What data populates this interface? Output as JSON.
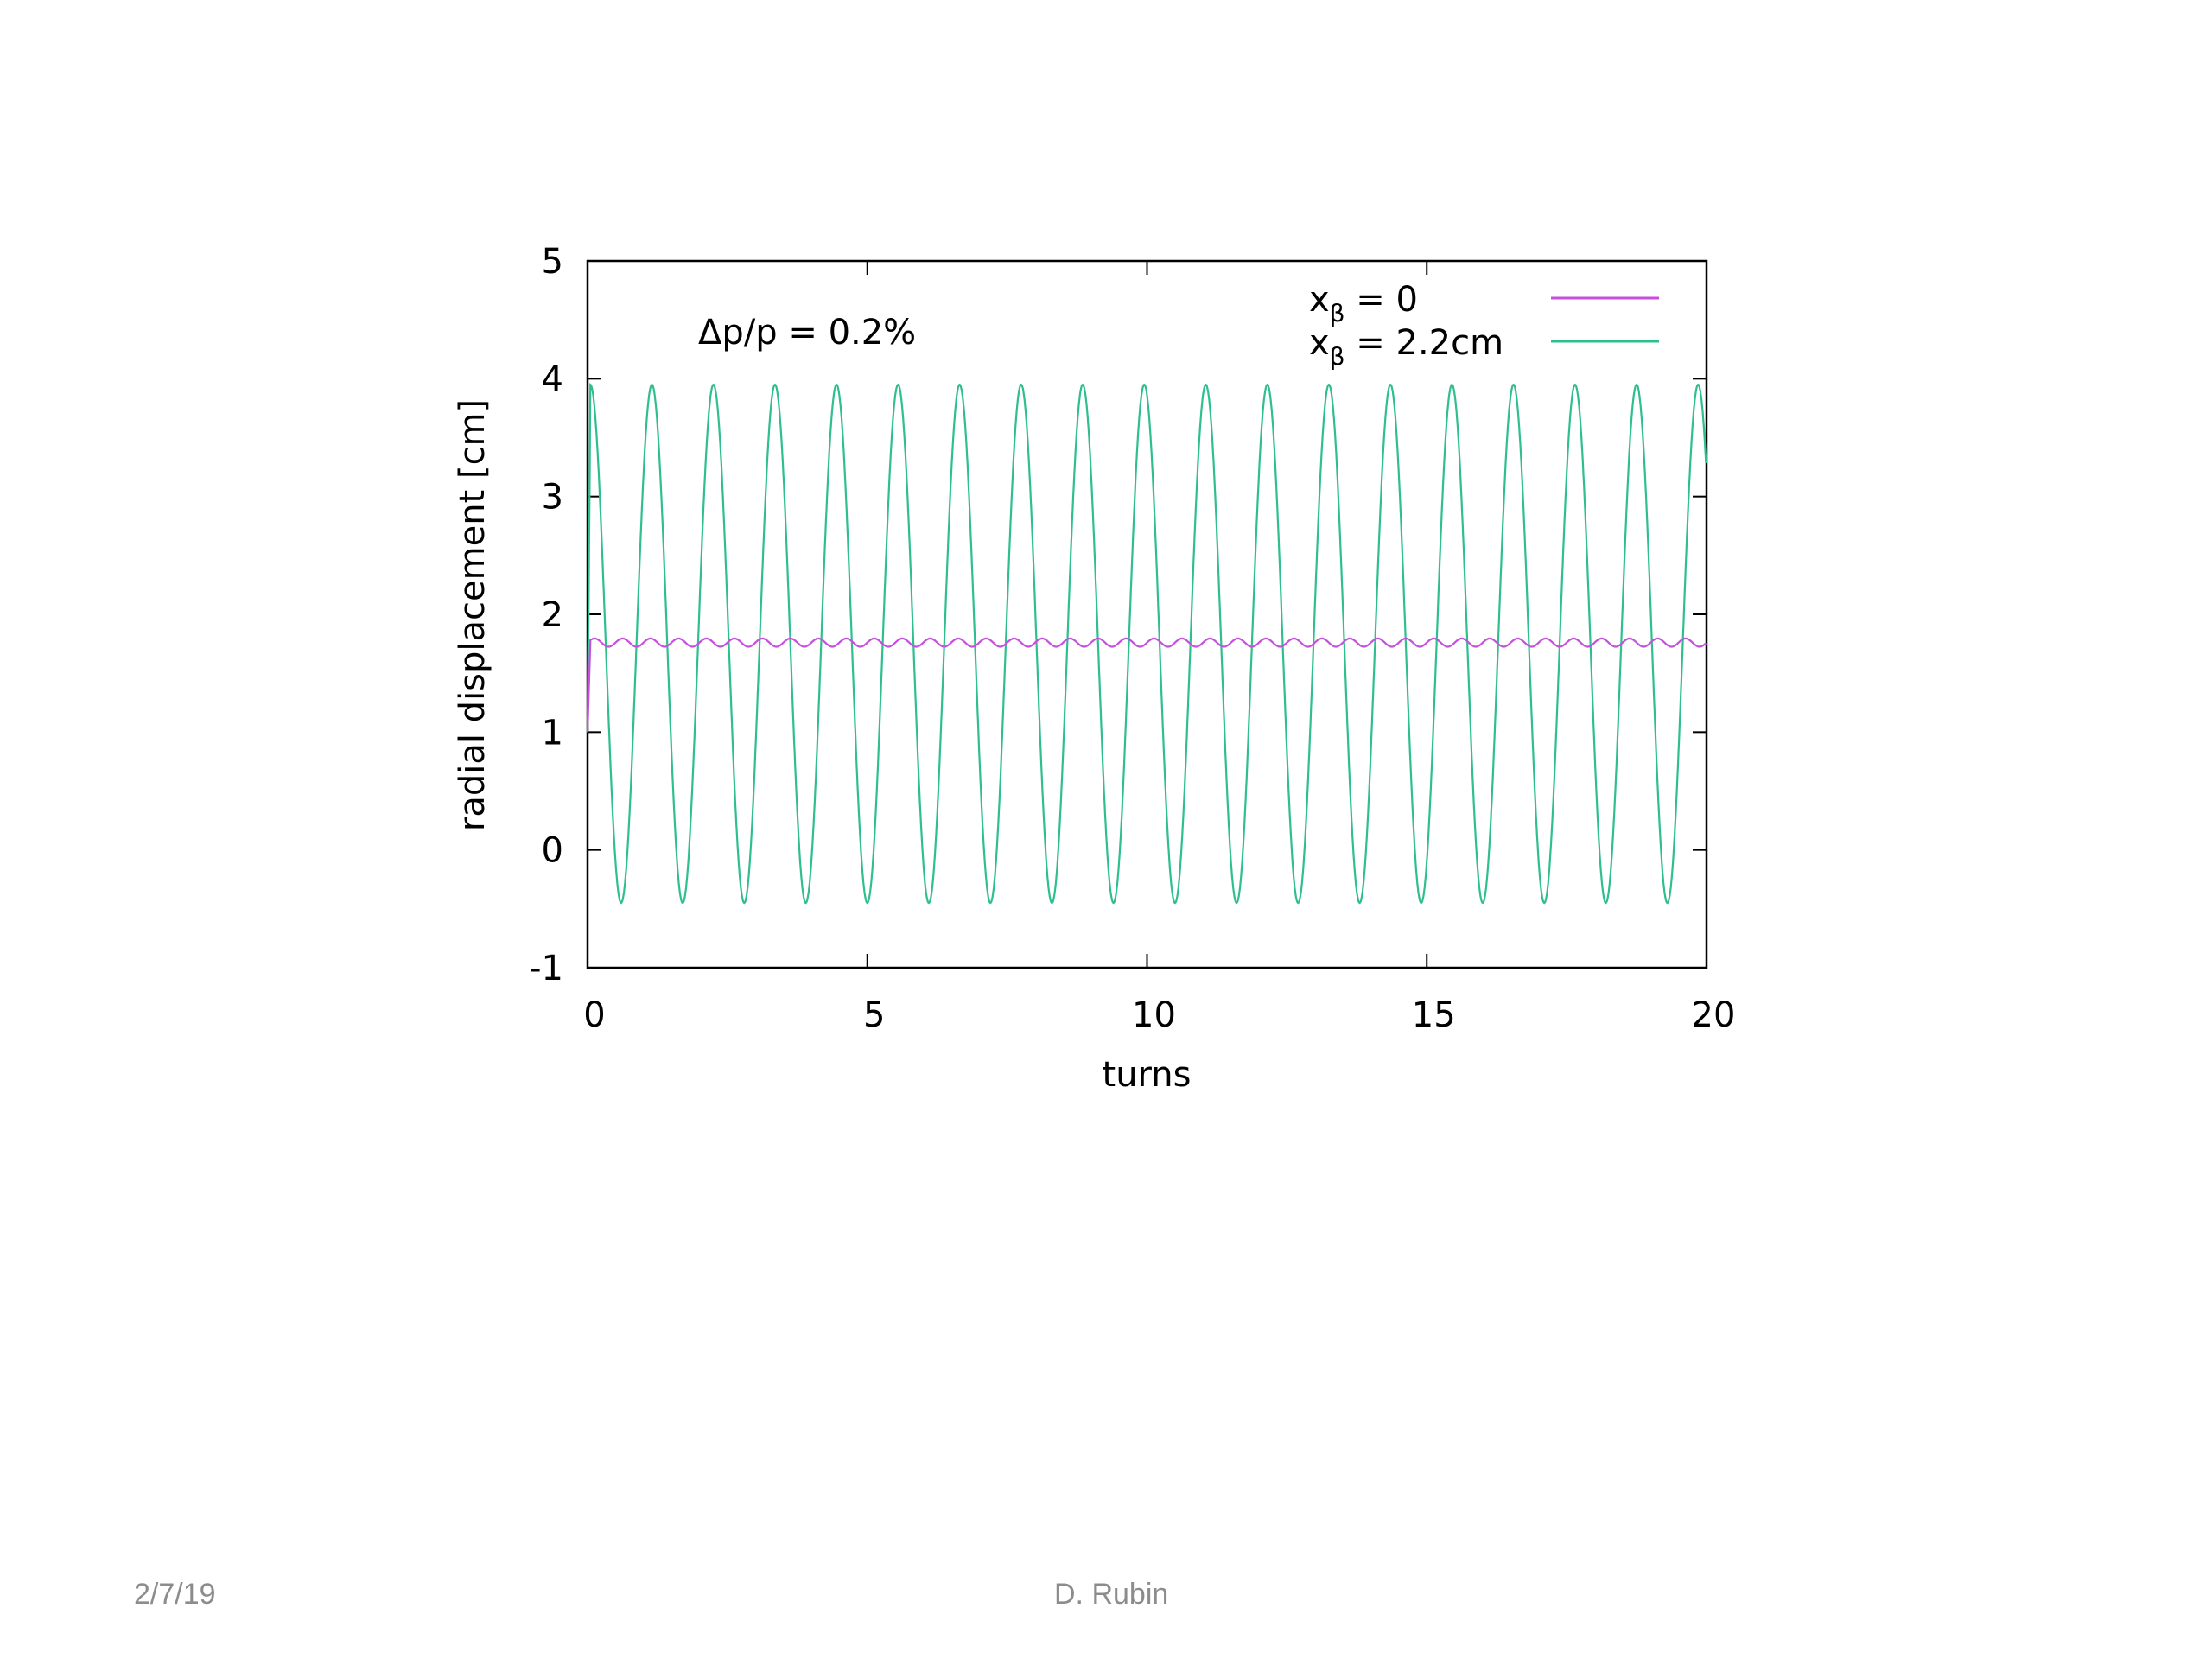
{
  "chart_data": {
    "type": "line",
    "xlabel": "turns",
    "ylabel": "radial displacement [cm]",
    "xlim": [
      0,
      20
    ],
    "ylim": [
      -1,
      5
    ],
    "xticks": [
      0,
      5,
      10,
      15,
      20
    ],
    "yticks": [
      -1,
      0,
      1,
      2,
      3,
      4,
      5
    ],
    "grid": false,
    "legend_position": "top-right",
    "annotation": "Δp/p = 0.2%",
    "series": [
      {
        "name_base": "x",
        "name_sub": "β",
        "name_rest": " = 0",
        "color": "#c74fe0",
        "start_value": 1.0,
        "mean": 1.76,
        "amplitude": 0.035,
        "ripple_period_turns": 0.5
      },
      {
        "name_base": "x",
        "name_sub": "β",
        "name_rest": " = 2.2cm",
        "color": "#2fbf8f",
        "start_value": 1.0,
        "first_peak": [
          0.05,
          3.8
        ],
        "oscillation_period_turns": 1.1,
        "max": 3.95,
        "min": -0.45
      }
    ]
  },
  "footer": {
    "date": "2/7/19",
    "author": "D. Rubin"
  }
}
